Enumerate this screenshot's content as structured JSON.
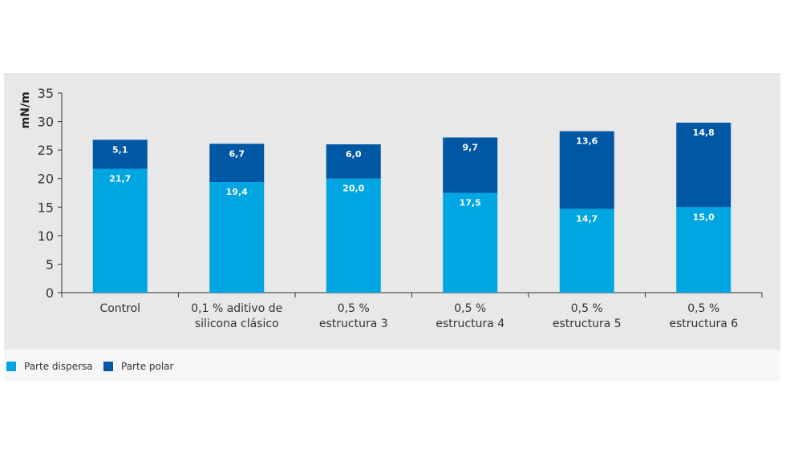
{
  "chart_data": {
    "type": "bar",
    "stacked": true,
    "ylabel": "mN/m",
    "ylim": [
      0,
      35
    ],
    "yticks": [
      0,
      5,
      10,
      15,
      20,
      25,
      30,
      35
    ],
    "categories": [
      [
        "Control"
      ],
      [
        "0,1 % aditivo de",
        "silicona clásico"
      ],
      [
        "0,5 %",
        "estructura 3"
      ],
      [
        "0,5 %",
        "estructura 4"
      ],
      [
        "0,5 %",
        "estructura 5"
      ],
      [
        "0,5 %",
        "estructura 6"
      ]
    ],
    "series": [
      {
        "name": "Parte dispersa",
        "color": "#00a6e2",
        "values": [
          21.7,
          19.4,
          20.0,
          17.5,
          14.7,
          15.0
        ],
        "labels": [
          "21,7",
          "19,4",
          "20,0",
          "17,5",
          "14,7",
          "15,0"
        ]
      },
      {
        "name": "Parte polar",
        "color": "#0057a3",
        "values": [
          5.1,
          6.7,
          6.0,
          9.7,
          13.6,
          14.8
        ],
        "labels": [
          "5,1",
          "6,7",
          "6,0",
          "9,7",
          "13,6",
          "14,8"
        ]
      }
    ],
    "grid": false,
    "legend": "bottom-left"
  }
}
